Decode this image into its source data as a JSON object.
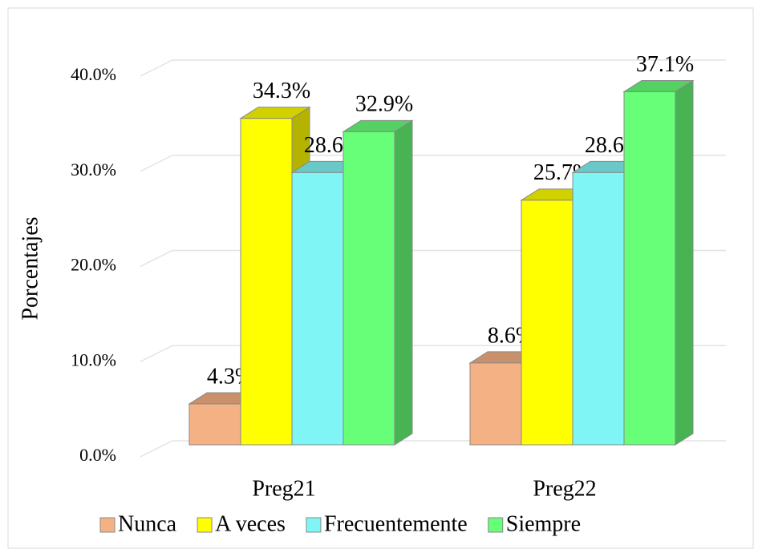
{
  "chart_data": {
    "type": "bar3d",
    "y_label": "Porcentajes",
    "categories": [
      "Preg21",
      "Preg22"
    ],
    "series": [
      {
        "name": "Nunca",
        "color": "#f4b183",
        "values": [
          4.3,
          8.6
        ],
        "value_labels": [
          "4.3%",
          "8.6%"
        ]
      },
      {
        "name": "A veces",
        "color": "#ffff00",
        "values": [
          34.3,
          25.7
        ],
        "value_labels": [
          "34.3%",
          "25.7%"
        ]
      },
      {
        "name": "Frecuentemente",
        "color": "#80f5f5",
        "values": [
          28.6,
          28.6
        ],
        "value_labels": [
          "28.6%",
          "28.6%"
        ]
      },
      {
        "name": "Siempre",
        "color": "#66ff77",
        "values": [
          32.9,
          37.1
        ],
        "value_labels": [
          "32.9%",
          "37.1%"
        ]
      }
    ],
    "ylim": [
      0,
      40
    ],
    "yticks": [
      {
        "value": 0,
        "label": "0.0%"
      },
      {
        "value": 10,
        "label": "10.0%"
      },
      {
        "value": 20,
        "label": "20.0%"
      },
      {
        "value": 30,
        "label": "30.0%"
      },
      {
        "value": 40,
        "label": "40.0%"
      }
    ],
    "grid": true,
    "legend": "bottom"
  }
}
